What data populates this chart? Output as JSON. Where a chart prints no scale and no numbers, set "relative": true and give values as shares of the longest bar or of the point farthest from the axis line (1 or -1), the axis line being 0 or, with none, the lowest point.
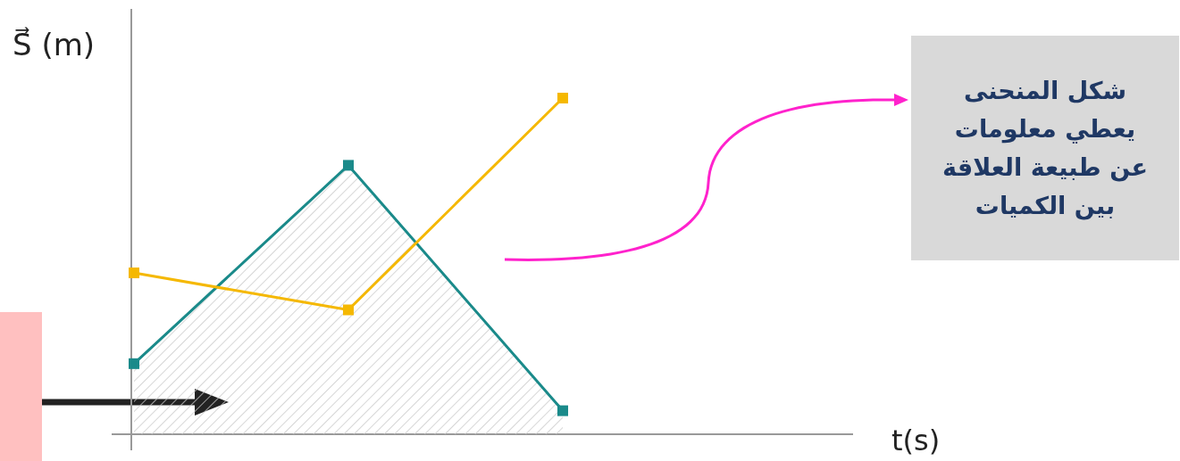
{
  "chart_data": {
    "type": "line",
    "relative": true,
    "marker": "square",
    "categories": [
      null,
      null,
      null
    ],
    "ylabel": "S⃗ (m)",
    "series": [
      {
        "type": "area",
        "color": "#1a8a8a",
        "values": [
          0.21,
          0.8,
          0.07
        ]
      },
      {
        "type": "line",
        "color": "#f5b800",
        "values": [
          0.48,
          0.37,
          1.0
        ]
      }
    ],
    "annotations": [
      "شكل المنحنى يعطي معلومات عن طبيعة العلاقة بين الكميات",
      "t(s)"
    ]
  }
}
